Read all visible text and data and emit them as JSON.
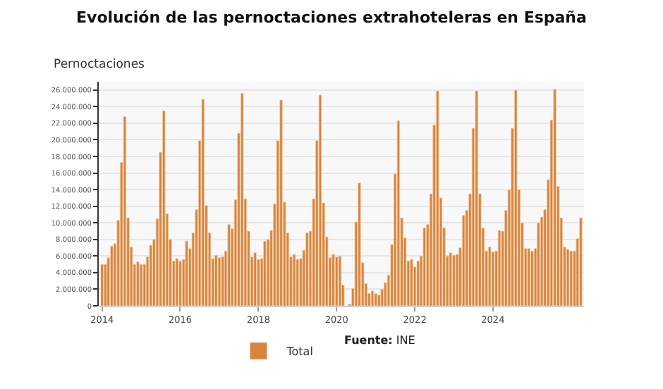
{
  "chart_data": {
    "type": "bar",
    "title": "Evolución de las pernoctaciones extrahoteleras en España",
    "ylabel": "Pernoctaciones",
    "x": [
      "2014-01",
      "2014-02",
      "2014-03",
      "2014-04",
      "2014-05",
      "2014-06",
      "2014-07",
      "2014-08",
      "2014-09",
      "2014-10",
      "2014-11",
      "2014-12",
      "2015-01",
      "2015-02",
      "2015-03",
      "2015-04",
      "2015-05",
      "2015-06",
      "2015-07",
      "2015-08",
      "2015-09",
      "2015-10",
      "2015-11",
      "2015-12",
      "2016-01",
      "2016-02",
      "2016-03",
      "2016-04",
      "2016-05",
      "2016-06",
      "2016-07",
      "2016-08",
      "2016-09",
      "2016-10",
      "2016-11",
      "2016-12",
      "2017-01",
      "2017-02",
      "2017-03",
      "2017-04",
      "2017-05",
      "2017-06",
      "2017-07",
      "2017-08",
      "2017-09",
      "2017-10",
      "2017-11",
      "2017-12",
      "2018-01",
      "2018-02",
      "2018-03",
      "2018-04",
      "2018-05",
      "2018-06",
      "2018-07",
      "2018-08",
      "2018-09",
      "2018-10",
      "2018-11",
      "2018-12",
      "2019-01",
      "2019-02",
      "2019-03",
      "2019-04",
      "2019-05",
      "2019-06",
      "2019-07",
      "2019-08",
      "2019-09",
      "2019-10",
      "2019-11",
      "2019-12",
      "2020-01",
      "2020-02",
      "2020-03",
      "2020-04",
      "2020-05",
      "2020-06",
      "2020-07",
      "2020-08",
      "2020-09",
      "2020-10",
      "2020-11",
      "2020-12",
      "2021-01",
      "2021-02",
      "2021-03",
      "2021-04",
      "2021-05",
      "2021-06",
      "2021-07",
      "2021-08",
      "2021-09",
      "2021-10",
      "2021-11",
      "2021-12",
      "2022-01",
      "2022-02",
      "2022-03",
      "2022-04",
      "2022-05",
      "2022-06",
      "2022-07",
      "2022-08",
      "2022-09",
      "2022-10",
      "2022-11",
      "2022-12",
      "2023-01",
      "2023-02",
      "2023-03",
      "2023-04",
      "2023-05",
      "2023-06",
      "2023-07",
      "2023-08",
      "2023-09",
      "2023-10",
      "2023-11",
      "2023-12",
      "2024-01",
      "2024-02",
      "2024-03",
      "2024-04",
      "2024-05",
      "2024-06",
      "2024-07",
      "2024-08",
      "2024-09",
      "2024-10",
      "2024-11",
      "2024-12",
      "2025-01",
      "2025-02",
      "2025-03",
      "2025-04",
      "2025-05",
      "2025-06",
      "2025-07",
      "2025-08",
      "2025-09",
      "2025-10",
      "2025-11",
      "2025-12",
      "2026-01",
      "2026-02",
      "2026-03",
      "2026-04"
    ],
    "series": [
      {
        "name": "Total",
        "color": "#d9843b",
        "values": [
          5000000,
          5000000,
          5800000,
          7200000,
          7500000,
          10300000,
          17300000,
          22800000,
          10600000,
          7100000,
          5000000,
          5300000,
          5000000,
          5000000,
          5900000,
          7300000,
          8000000,
          10500000,
          18500000,
          23500000,
          11100000,
          8000000,
          5400000,
          5700000,
          5400000,
          5600000,
          7800000,
          6900000,
          8800000,
          11600000,
          19900000,
          24900000,
          12100000,
          8800000,
          5700000,
          6100000,
          5800000,
          5900000,
          6600000,
          9800000,
          9300000,
          12800000,
          20800000,
          25600000,
          12900000,
          9000000,
          5900000,
          6400000,
          5600000,
          5700000,
          7800000,
          8000000,
          9100000,
          12300000,
          19900000,
          24800000,
          12500000,
          8800000,
          5900000,
          6200000,
          5600000,
          5700000,
          6700000,
          8800000,
          9000000,
          12900000,
          19900000,
          25400000,
          12400000,
          8300000,
          5800000,
          6200000,
          5900000,
          6000000,
          2500000,
          null,
          200000,
          2100000,
          10100000,
          14800000,
          5200000,
          2700000,
          1500000,
          1800000,
          1500000,
          1300000,
          2000000,
          2800000,
          3700000,
          7400000,
          15900000,
          22300000,
          10600000,
          8200000,
          5400000,
          5600000,
          4700000,
          5400000,
          6000000,
          9400000,
          9800000,
          13500000,
          21800000,
          25900000,
          13000000,
          9400000,
          6000000,
          6400000,
          6100000,
          6200000,
          7000000,
          10900000,
          11500000,
          13500000,
          21400000,
          25900000,
          13500000,
          9400000,
          6600000,
          7100000,
          6500000,
          6600000,
          9100000,
          9000000,
          11500000,
          14000000,
          21400000,
          26000000,
          14000000,
          10000000,
          6900000,
          6900000,
          6600000,
          6900000,
          10000000,
          10700000,
          11600000,
          15200000,
          22400000,
          26100000,
          14400000,
          10600000,
          7100000,
          6800000,
          6600000,
          6600000,
          8100000,
          10600000
        ]
      }
    ],
    "xlim": [
      "2013-12",
      "2026-05"
    ],
    "xticks": [
      {
        "value": "2014",
        "label": "2014"
      },
      {
        "value": "2016",
        "label": "2016"
      },
      {
        "value": "2018",
        "label": "2018"
      },
      {
        "value": "2020",
        "label": "2020"
      },
      {
        "value": "2022",
        "label": "2022"
      },
      {
        "value": "2024",
        "label": "2024"
      }
    ],
    "ylim": [
      0,
      27000000
    ],
    "yticks": [
      {
        "value": 0,
        "label": "0"
      },
      {
        "value": 2000000,
        "label": "2.000.000"
      },
      {
        "value": 4000000,
        "label": "4.000.000"
      },
      {
        "value": 6000000,
        "label": "6.000.000"
      },
      {
        "value": 8000000,
        "label": "8.000.000"
      },
      {
        "value": 10000000,
        "label": "10.000.000"
      },
      {
        "value": 12000000,
        "label": "12.000.000"
      },
      {
        "value": 14000000,
        "label": "14.000.000"
      },
      {
        "value": 16000000,
        "label": "16.000.000"
      },
      {
        "value": 18000000,
        "label": "18.000.000"
      },
      {
        "value": 20000000,
        "label": "20.000.000"
      },
      {
        "value": 22000000,
        "label": "22.000.000"
      },
      {
        "value": 24000000,
        "label": "24.000.000"
      },
      {
        "value": 26000000,
        "label": "26.000.000"
      }
    ],
    "grid": "y",
    "legend": "bottom",
    "annotations": [
      "Fuente: INE"
    ]
  }
}
